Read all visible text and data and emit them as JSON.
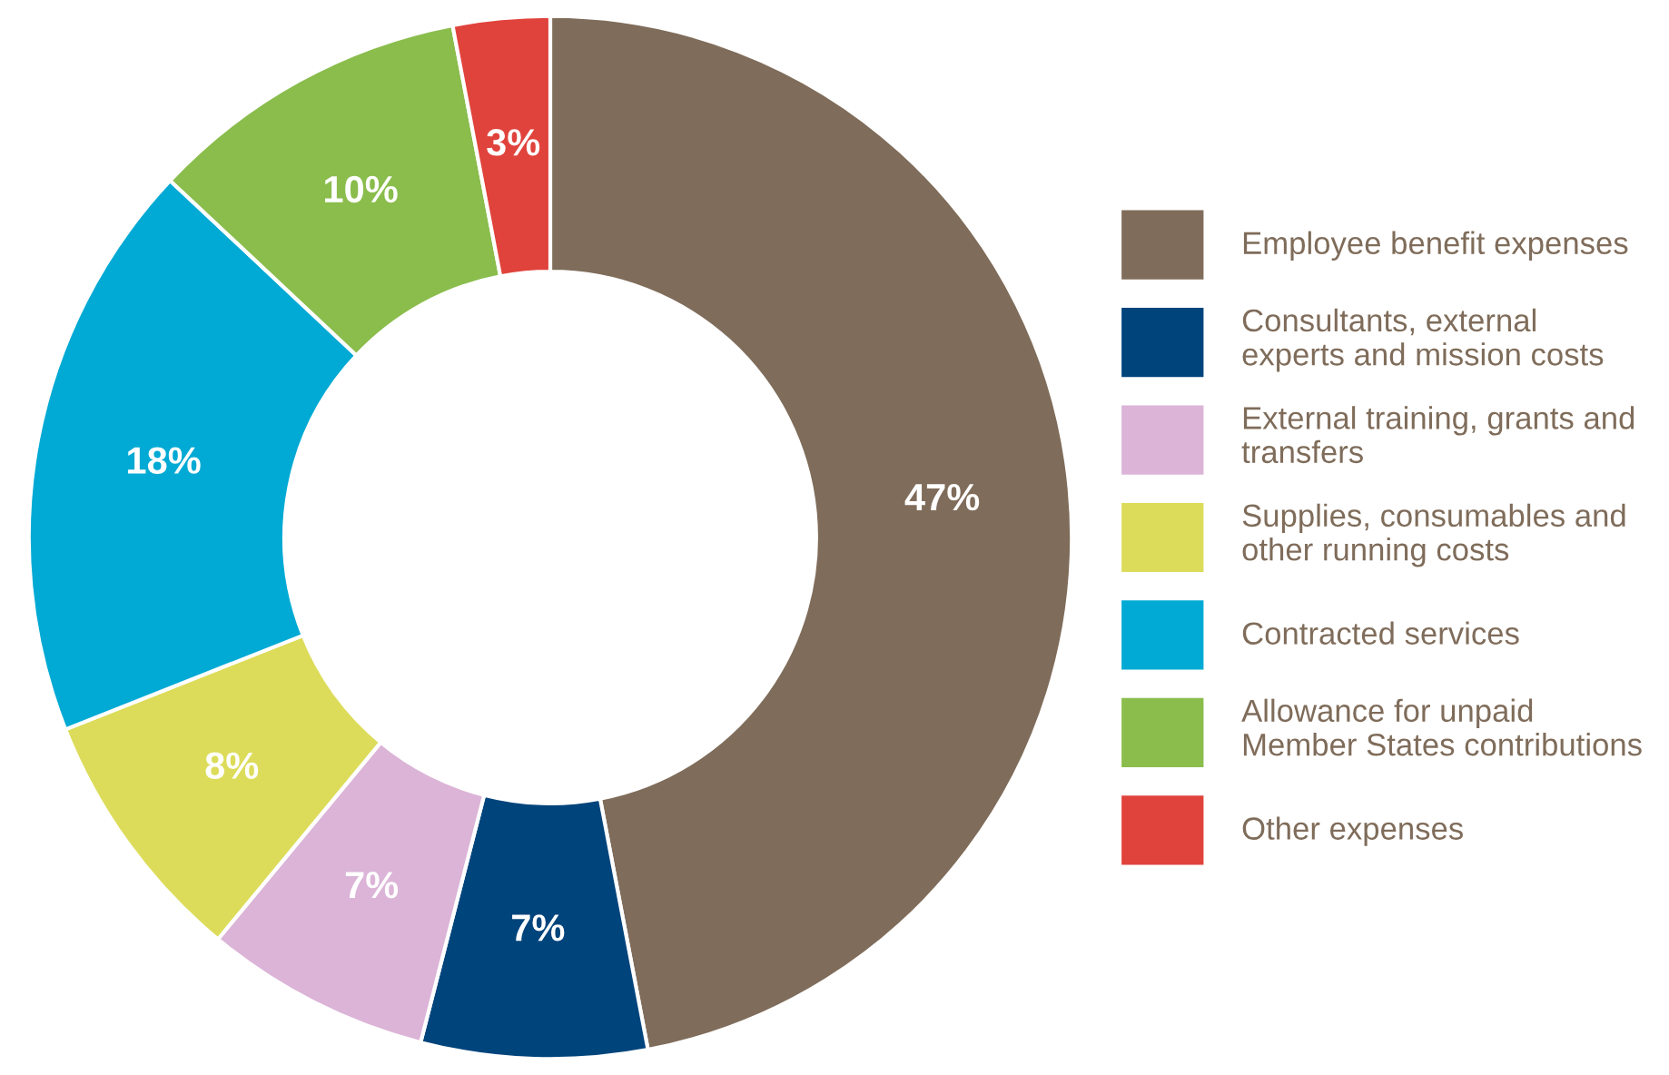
{
  "chart_data": {
    "type": "donut",
    "categories": [
      "Employee benefit expenses",
      "Consultants, external experts and mission costs",
      "External training, grants and transfers",
      "Supplies, consumables and other running costs",
      "Contracted services",
      "Allowance for unpaid Member States contributions",
      "Other expenses"
    ],
    "values": [
      47,
      7,
      7,
      8,
      18,
      10,
      3
    ],
    "colors": [
      "#7f6c5a",
      "#00447c",
      "#dbb4d7",
      "#dcdc5a",
      "#00aad4",
      "#8abd4c",
      "#e0433c"
    ],
    "value_labels": [
      "47%",
      "7%",
      "7%",
      "8%",
      "18%",
      "10%",
      "3%"
    ],
    "legend": "right"
  }
}
